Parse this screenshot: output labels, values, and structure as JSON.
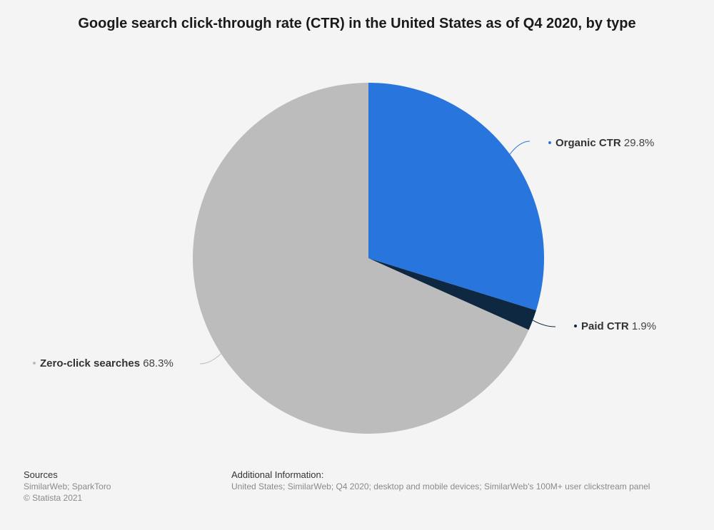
{
  "chart_data": {
    "type": "pie",
    "title": "Google search click-through rate (CTR) in the United States as of Q4 2020, by type",
    "slices": [
      {
        "name": "Organic CTR",
        "value": 29.8,
        "label": "29.8%",
        "color": "#2876dd"
      },
      {
        "name": "Paid CTR",
        "value": 1.9,
        "label": "1.9%",
        "color": "#0e2841"
      },
      {
        "name": "Zero-click searches",
        "value": 68.3,
        "label": "68.3%",
        "color": "#bcbcbc"
      }
    ],
    "legend": "none"
  },
  "footer": {
    "sources_heading": "Sources",
    "sources_text": "SimilarWeb; SparkToro",
    "copyright": "© Statista 2021",
    "info_heading": "Additional Information:",
    "info_text": "United States; SimilarWeb; Q4 2020; desktop and mobile devices; SimilarWeb's 100M+ user clickstream panel"
  }
}
